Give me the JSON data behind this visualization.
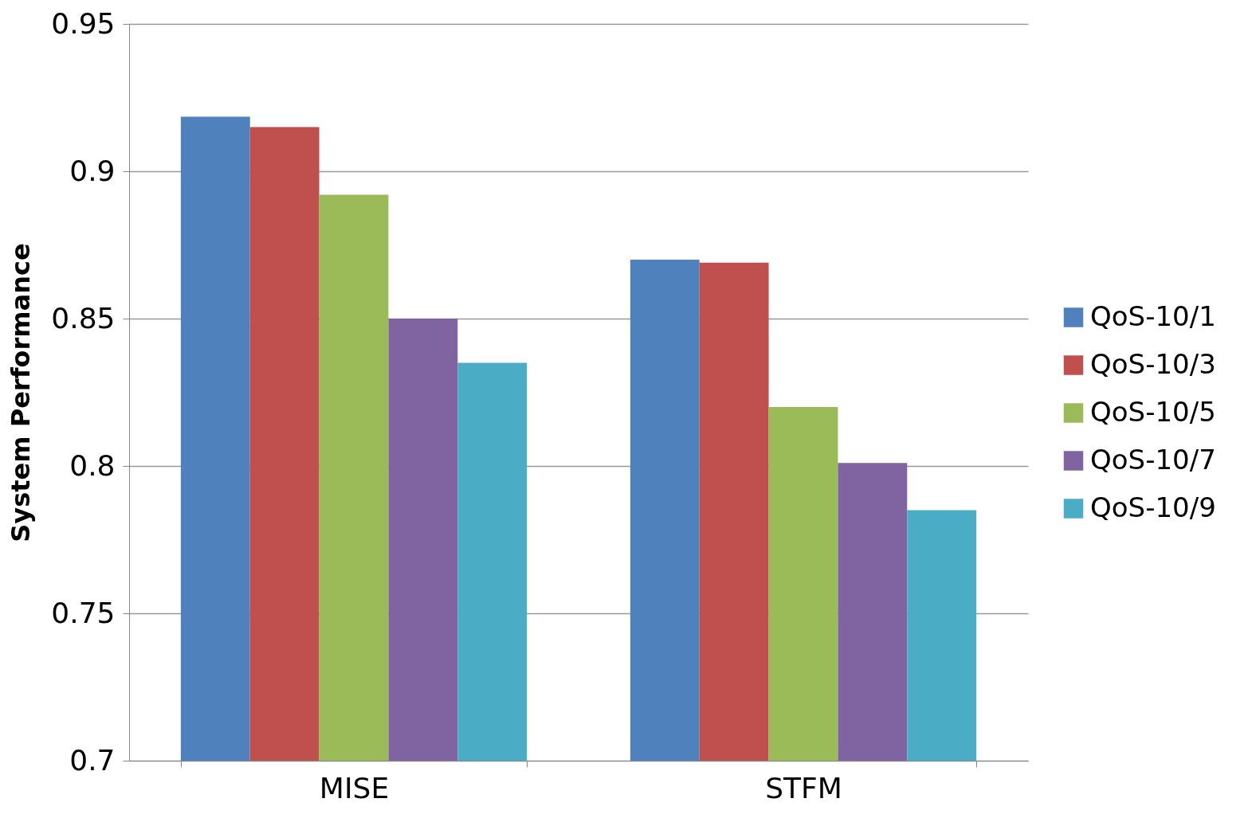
{
  "chart_data": {
    "type": "bar",
    "ylabel": "System Performance",
    "categories": [
      "MISE",
      "STFM"
    ],
    "series": [
      {
        "name": "QoS-10/1",
        "color": "#4f81bd",
        "values": [
          0.9185,
          0.87
        ]
      },
      {
        "name": "QoS-10/3",
        "color": "#c0504d",
        "values": [
          0.915,
          0.869
        ]
      },
      {
        "name": "QoS-10/5",
        "color": "#9bbb59",
        "values": [
          0.892,
          0.82
        ]
      },
      {
        "name": "QoS-10/7",
        "color": "#8064a2",
        "values": [
          0.85,
          0.801
        ]
      },
      {
        "name": "QoS-10/9",
        "color": "#4bacc6",
        "values": [
          0.835,
          0.785
        ]
      }
    ],
    "ylim": [
      0.7,
      0.95
    ],
    "yticks": [
      0.7,
      0.75,
      0.8,
      0.85,
      0.9,
      0.95
    ],
    "grid": "y",
    "legend": "right"
  }
}
